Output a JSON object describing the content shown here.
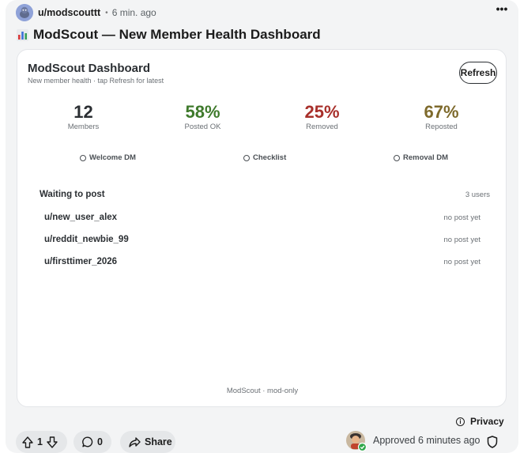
{
  "post": {
    "username": "u/modscouttt",
    "separator": "•",
    "time": "6 min. ago",
    "more_label": "•••",
    "title": "ModScout — New Member Health Dashboard"
  },
  "dashboard": {
    "title": "ModScout Dashboard",
    "subtitle": "New member health · tap Refresh for latest",
    "refresh_label": "Refresh",
    "stats": [
      {
        "value": "12",
        "label": "Members",
        "color": "#2b2f33"
      },
      {
        "value": "58%",
        "label": "Posted OK",
        "color": "#3f7a2c"
      },
      {
        "value": "25%",
        "label": "Removed",
        "color": "#a8302b"
      },
      {
        "value": "67%",
        "label": "Reposted",
        "color": "#7e6a2c"
      }
    ],
    "checks": [
      {
        "label": "Welcome DM"
      },
      {
        "label": "Checklist"
      },
      {
        "label": "Removal DM"
      }
    ],
    "waiting": {
      "title": "Waiting to post",
      "count": "3 users",
      "users": [
        {
          "name": "u/new_user_alex",
          "status": "no post yet"
        },
        {
          "name": "u/reddit_newbie_99",
          "status": "no post yet"
        },
        {
          "name": "u/firsttimer_2026",
          "status": "no post yet"
        }
      ]
    },
    "footer": "ModScout · mod-only"
  },
  "bottom": {
    "privacy_label": "Privacy",
    "info_glyph": "i",
    "vote_count": "1",
    "comment_count": "0",
    "share_label": "Share",
    "approved_text": "Approved 6 minutes ago"
  },
  "icons": {
    "avatar": "snoo-avatar-icon",
    "title": "bar-chart-icon",
    "upvote": "arrow-up-icon",
    "downvote": "arrow-down-icon",
    "comment": "speech-bubble-icon",
    "share": "share-arrow-icon",
    "shield": "shield-icon",
    "info": "info-icon"
  }
}
